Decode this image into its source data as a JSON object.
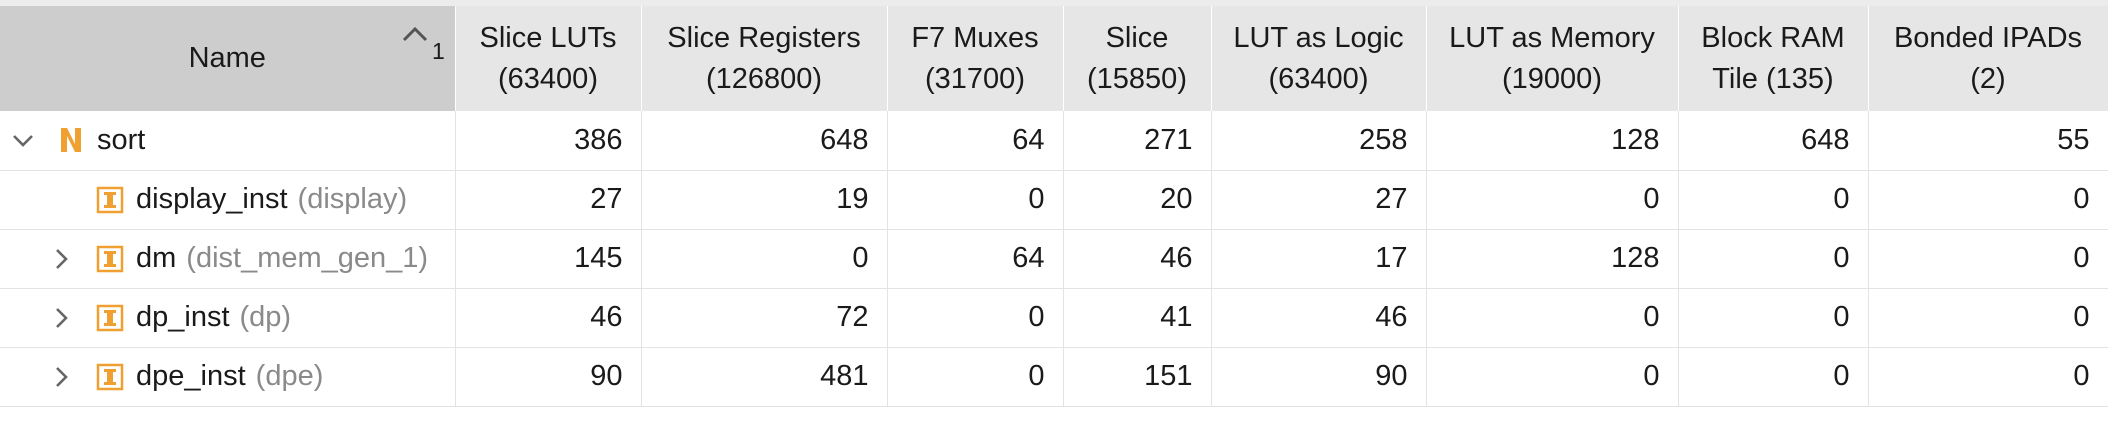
{
  "columns": {
    "name": "Name",
    "sort_index": "1",
    "metrics": [
      {
        "line1": "Slice LUTs",
        "line2": "(63400)"
      },
      {
        "line1": "Slice Registers",
        "line2": "(126800)"
      },
      {
        "line1": "F7 Muxes",
        "line2": "(31700)"
      },
      {
        "line1": "Slice",
        "line2": "(15850)"
      },
      {
        "line1": "LUT as Logic",
        "line2": "(63400)"
      },
      {
        "line1": "LUT as Memory",
        "line2": "(19000)"
      },
      {
        "line1": "Block RAM",
        "line2": "Tile (135)"
      },
      {
        "line1": "Bonded IPADs",
        "line2": "(2)"
      }
    ]
  },
  "rows": [
    {
      "name": "sort",
      "module": "",
      "expander": "expanded",
      "icon": "top-module-icon",
      "values": [
        "386",
        "648",
        "64",
        "271",
        "258",
        "128",
        "648",
        "55"
      ]
    },
    {
      "name": "display_inst",
      "module": "(display)",
      "expander": "none",
      "icon": "instance-icon",
      "values": [
        "27",
        "19",
        "0",
        "20",
        "27",
        "0",
        "0",
        "0"
      ]
    },
    {
      "name": "dm",
      "module": "(dist_mem_gen_1)",
      "expander": "collapsed",
      "icon": "instance-icon",
      "values": [
        "145",
        "0",
        "64",
        "46",
        "17",
        "128",
        "0",
        "0"
      ]
    },
    {
      "name": "dp_inst",
      "module": "(dp)",
      "expander": "collapsed",
      "icon": "instance-icon",
      "values": [
        "46",
        "72",
        "0",
        "41",
        "46",
        "0",
        "0",
        "0"
      ]
    },
    {
      "name": "dpe_inst",
      "module": "(dpe)",
      "expander": "collapsed",
      "icon": "instance-icon",
      "values": [
        "90",
        "481",
        "0",
        "151",
        "90",
        "0",
        "0",
        "0"
      ]
    }
  ],
  "colors": {
    "header_bg": "#e6e6e6",
    "name_header_bg": "#cdcdcd",
    "icon_orange": "#f0a030",
    "module_text": "#8a8a8a"
  }
}
